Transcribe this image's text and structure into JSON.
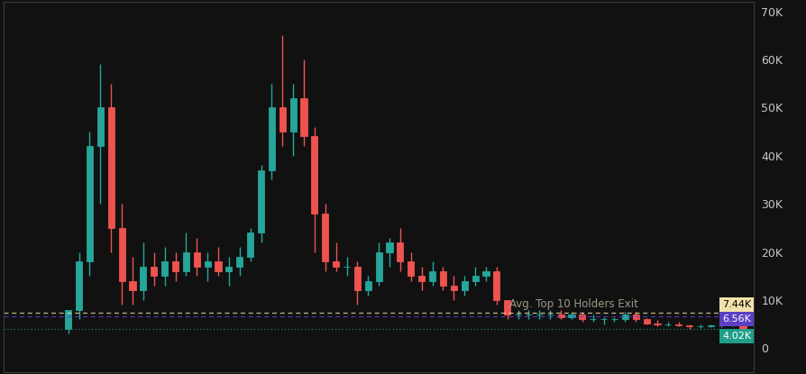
{
  "chart_data": {
    "type": "candlestick",
    "x": [
      0,
      1,
      2,
      3,
      4,
      5,
      6,
      7,
      8,
      9,
      10,
      11,
      12,
      13,
      14,
      15,
      16,
      17,
      18,
      19,
      20,
      21,
      22,
      23,
      24,
      25,
      26,
      27,
      28,
      29,
      30,
      31,
      32,
      33,
      34,
      35,
      36,
      37,
      38,
      39,
      40,
      41,
      42,
      43,
      44,
      45,
      46,
      47,
      48,
      49,
      50,
      51,
      52,
      53,
      54,
      55,
      56,
      57,
      58,
      59,
      60,
      61,
      62,
      63
    ],
    "open": [
      4000,
      8000,
      18000,
      42000,
      50000,
      25000,
      14000,
      12000,
      17000,
      15000,
      18000,
      16000,
      20000,
      17000,
      18000,
      16000,
      17000,
      19000,
      24000,
      37000,
      50000,
      45000,
      52000,
      44000,
      28000,
      18000,
      17000,
      17000,
      12000,
      14000,
      20000,
      22000,
      18000,
      15000,
      14000,
      16000,
      13000,
      12000,
      14000,
      15000,
      16000,
      10000,
      7000,
      7000,
      7000,
      7000,
      7000,
      6500,
      7000,
      6000,
      6000,
      6000,
      6000,
      7000,
      6000,
      5200,
      5000,
      5000,
      4800,
      4500,
      4600,
      4700,
      4800,
      5000
    ],
    "high": [
      8000,
      20000,
      45000,
      59000,
      55000,
      30000,
      19000,
      22000,
      20000,
      21000,
      20000,
      24000,
      23000,
      20000,
      21000,
      19000,
      21000,
      25000,
      38000,
      55000,
      65000,
      55000,
      60000,
      46000,
      30000,
      22000,
      19000,
      18000,
      15000,
      22000,
      23000,
      25000,
      20000,
      17000,
      18000,
      17000,
      15000,
      15000,
      17000,
      17000,
      17000,
      10000,
      8000,
      8000,
      8000,
      8000,
      8000,
      7500,
      7500,
      7000,
      6500,
      6500,
      7500,
      7500,
      6200,
      5800,
      5500,
      5500,
      5000,
      5000,
      5000,
      5000,
      5200,
      5400
    ],
    "low": [
      3000,
      6000,
      15000,
      30000,
      20000,
      9000,
      9000,
      10000,
      13000,
      13000,
      14000,
      15000,
      15000,
      14000,
      15000,
      13000,
      15000,
      18000,
      22000,
      35000,
      42000,
      40000,
      42000,
      20000,
      16000,
      16000,
      15000,
      9000,
      11000,
      13000,
      17000,
      16000,
      14000,
      12000,
      13000,
      12000,
      10000,
      11000,
      13000,
      14000,
      9000,
      6000,
      6000,
      6000,
      6000,
      6000,
      6000,
      6000,
      5500,
      5500,
      5000,
      5500,
      5500,
      5500,
      5000,
      4500,
      4500,
      4500,
      4000,
      4200,
      4300,
      4300,
      4500,
      4000
    ],
    "close": [
      8000,
      18000,
      42000,
      50000,
      25000,
      14000,
      12000,
      17000,
      15000,
      18000,
      16000,
      20000,
      17000,
      18000,
      16000,
      17000,
      19000,
      24000,
      37000,
      50000,
      45000,
      52000,
      44000,
      28000,
      18000,
      17000,
      17000,
      12000,
      14000,
      20000,
      22000,
      18000,
      15000,
      14000,
      16000,
      13000,
      12000,
      14000,
      15000,
      16000,
      10000,
      7000,
      7000,
      7000,
      7000,
      7000,
      6500,
      7000,
      6000,
      6000,
      6000,
      6000,
      7000,
      6000,
      5200,
      5000,
      5000,
      4800,
      4500,
      4600,
      4700,
      4800,
      5000,
      4020
    ],
    "xlim": [
      -6,
      64
    ],
    "ylim": [
      -5000,
      72000
    ],
    "yticks": [
      0,
      {
        "value": 10000,
        "label": "10K"
      },
      {
        "value": 20000,
        "label": "20K"
      },
      {
        "value": 30000,
        "label": "30K"
      },
      {
        "value": 40000,
        "label": "40K"
      },
      {
        "value": 50000,
        "label": "50K"
      },
      {
        "value": 60000,
        "label": "60K"
      },
      {
        "value": 70000,
        "label": "70K"
      }
    ],
    "tick_labels": "y",
    "grid": false,
    "reference_lines": [
      {
        "value": 7440,
        "label": "7.44K",
        "color": "#f3e2a9",
        "line_style": "dashed",
        "text": "Avg. Top 10 Holders Exit"
      },
      {
        "value": 6560,
        "label": "6.56K",
        "color": "#5b3fc4",
        "line_style": "dashed"
      },
      {
        "value": 4020,
        "label": "4.02K",
        "color": "#1f9e89",
        "line_style": "dotted"
      }
    ]
  }
}
